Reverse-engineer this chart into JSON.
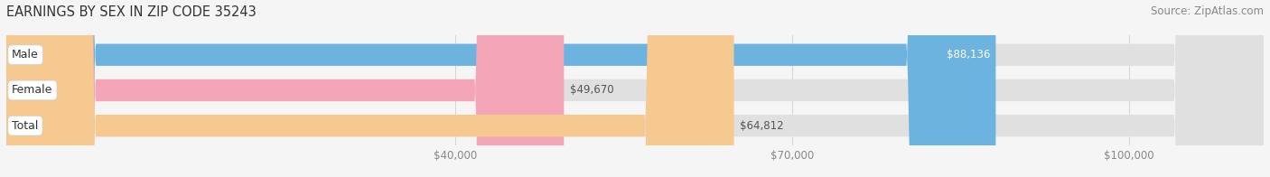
{
  "title": "EARNINGS BY SEX IN ZIP CODE 35243",
  "source": "Source: ZipAtlas.com",
  "categories": [
    "Male",
    "Female",
    "Total"
  ],
  "values": [
    88136,
    49670,
    64812
  ],
  "bar_colors": [
    "#6db3e0",
    "#f4a6b8",
    "#f5c990"
  ],
  "value_labels": [
    "$88,136",
    "$49,670",
    "$64,812"
  ],
  "label_inside": [
    true,
    false,
    false
  ],
  "label_text_colors": [
    "#ffffff",
    "#555555",
    "#555555"
  ],
  "xmin": 0,
  "xmax": 112000,
  "xticks": [
    40000,
    70000,
    100000
  ],
  "xtick_labels": [
    "$40,000",
    "$70,000",
    "$100,000"
  ],
  "bar_height": 0.62,
  "bar_gap": 0.15,
  "background_color": "#f5f5f5",
  "bar_bg_color": "#e0e0e0",
  "title_fontsize": 10.5,
  "source_fontsize": 8.5,
  "tick_fontsize": 8.5,
  "label_fontsize": 8.5,
  "category_fontsize": 9.0,
  "rounding_size": 8000
}
